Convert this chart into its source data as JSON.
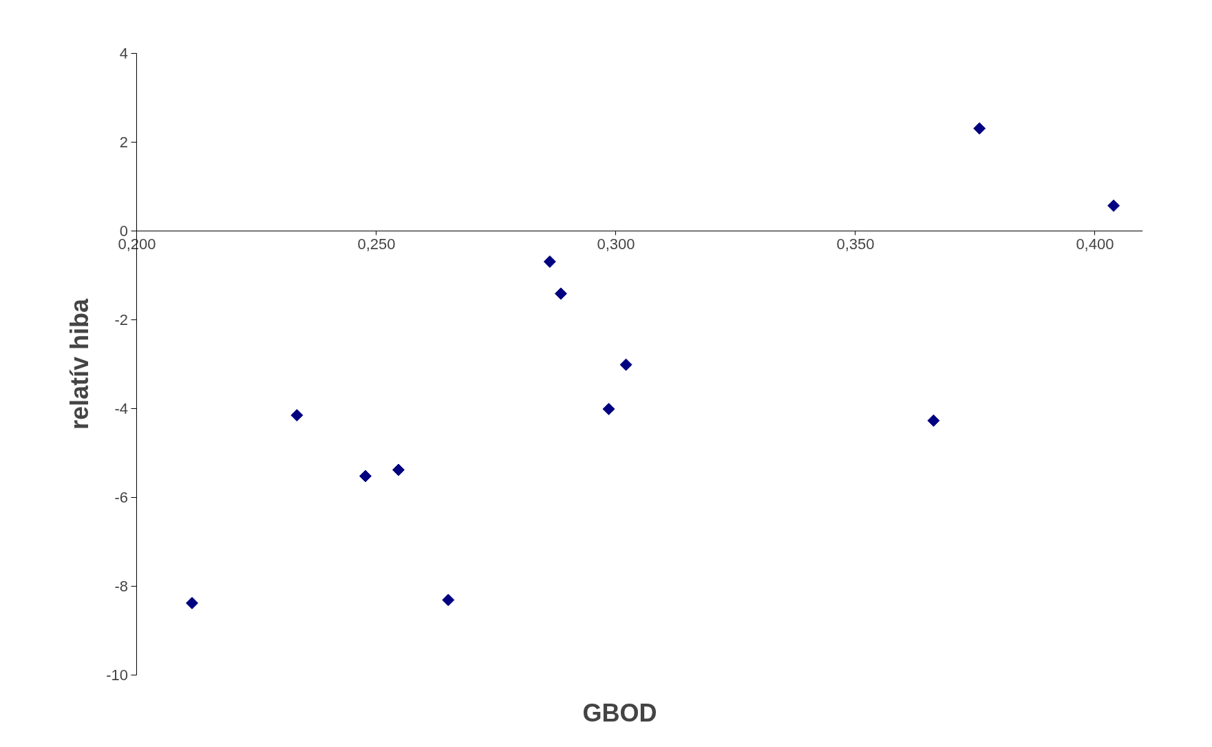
{
  "chart_data": {
    "type": "scatter",
    "xlabel": "GBOD",
    "ylabel": "relatív hiba",
    "x": [
      0.2115,
      0.2334,
      0.2477,
      0.2546,
      0.265,
      0.2862,
      0.2885,
      0.2985,
      0.3021,
      0.3663,
      0.3759,
      0.4039
    ],
    "series": [
      {
        "color": "#000080",
        "values": [
          -8.38,
          -4.15,
          -5.52,
          -5.38,
          -8.31,
          -0.69,
          -1.41,
          -4.01,
          -3.01,
          -4.27,
          2.31,
          0.57
        ]
      }
    ],
    "xlim": [
      0.2,
      0.41
    ],
    "ylim": [
      -10,
      4
    ],
    "xticks": [
      {
        "value": 0.2,
        "label": "0,200"
      },
      {
        "value": 0.25,
        "label": "0,250"
      },
      {
        "value": 0.3,
        "label": "0,300"
      },
      {
        "value": 0.35,
        "label": "0,350"
      },
      {
        "value": 0.4,
        "label": "0,400"
      }
    ],
    "yticks": [
      -10,
      -8,
      -6,
      -4,
      -2,
      0,
      2,
      4
    ],
    "marker": "diamond",
    "grid": false
  }
}
